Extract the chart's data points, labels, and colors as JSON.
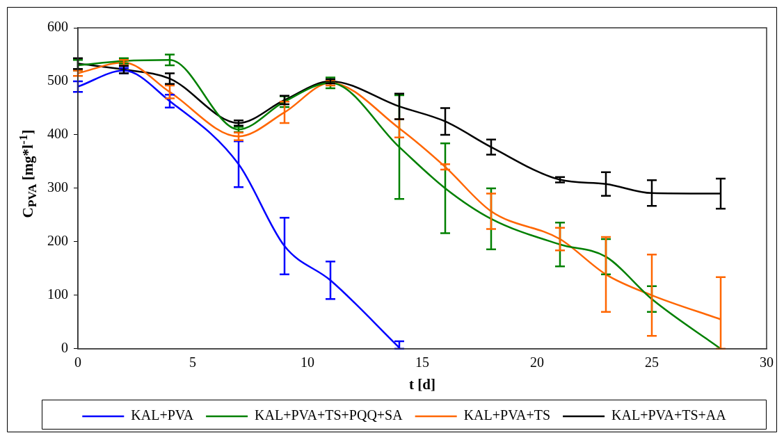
{
  "chart_data": {
    "type": "line",
    "xlabel": "t [d]",
    "ylabel": "C$_{PVA}$ [mg*l$^{-1}$]",
    "x": [
      0,
      2,
      4,
      7,
      9,
      11,
      14,
      16,
      18,
      21,
      23,
      25,
      28
    ],
    "xlim": [
      0,
      30
    ],
    "xticks": [
      0,
      5,
      10,
      15,
      20,
      25,
      30
    ],
    "ylim": [
      0,
      600
    ],
    "yticks": [
      0,
      100,
      200,
      300,
      400,
      500,
      600
    ],
    "grid": false,
    "legend": "bottom",
    "marker": "none",
    "line_style": "solid",
    "series": [
      {
        "name": "KAL+PVA",
        "color": "#0000ff",
        "x": [
          0,
          2,
          4,
          7,
          9,
          11,
          14
        ],
        "values": [
          490,
          520,
          463,
          345,
          192,
          128,
          2
        ],
        "errors": [
          10,
          5,
          12,
          43,
          53,
          35,
          [
            0,
            14
          ]
        ]
      },
      {
        "name": "KAL+PVA+TS+PQQ+SA",
        "color": "#008000",
        "values": [
          530,
          538,
          540,
          410,
          462,
          497,
          377,
          300,
          243,
          195,
          172,
          93,
          0
        ],
        "errors": [
          10,
          5,
          10,
          5,
          10,
          10,
          97,
          84,
          57,
          41,
          33,
          24,
          null
        ]
      },
      {
        "name": "KAL+PVA+TS",
        "color": "#ff6600",
        "values": [
          515,
          535,
          480,
          397,
          442,
          497,
          412,
          340,
          257,
          205,
          139,
          100,
          55
        ],
        "errors": [
          5,
          5,
          12,
          7,
          20,
          5,
          17,
          5,
          33,
          21,
          70,
          76,
          [
            0,
            134
          ]
        ]
      },
      {
        "name": "KAL+PVA+TS+AA",
        "color": "#000000",
        "values": [
          533,
          522,
          505,
          422,
          465,
          500,
          453,
          425,
          377,
          316,
          308,
          291,
          290
        ],
        "errors": [
          10,
          7,
          10,
          5,
          8,
          4,
          24,
          25,
          14,
          5,
          22,
          24,
          28
        ]
      }
    ]
  }
}
